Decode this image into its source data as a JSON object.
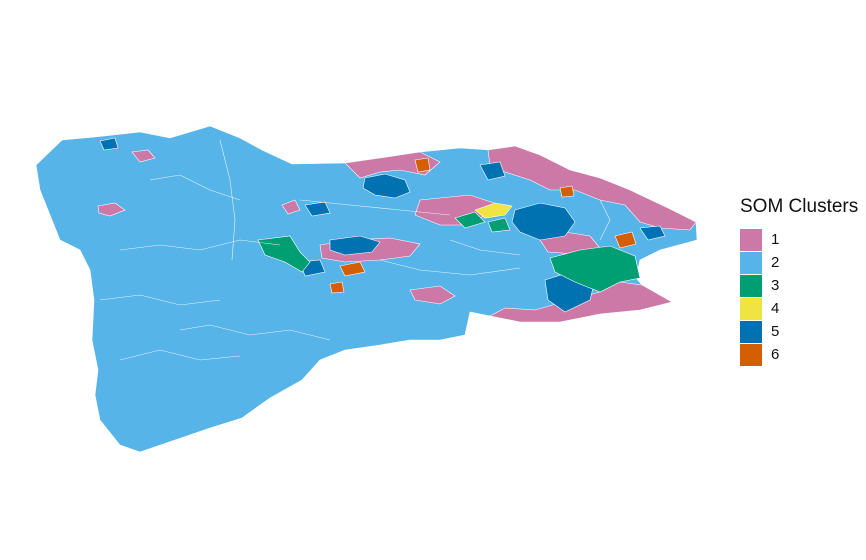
{
  "legend": {
    "title": "SOM Clusters",
    "items": [
      {
        "label": "1",
        "color": "#CC79A7"
      },
      {
        "label": "2",
        "color": "#56B4E9"
      },
      {
        "label": "3",
        "color": "#009E73"
      },
      {
        "label": "4",
        "color": "#F0E442"
      },
      {
        "label": "5",
        "color": "#0072B2"
      },
      {
        "label": "6",
        "color": "#D55E00"
      }
    ]
  },
  "map": {
    "background": "#ffffff",
    "boundary_color": "#ffffff",
    "base_cluster": "2"
  }
}
